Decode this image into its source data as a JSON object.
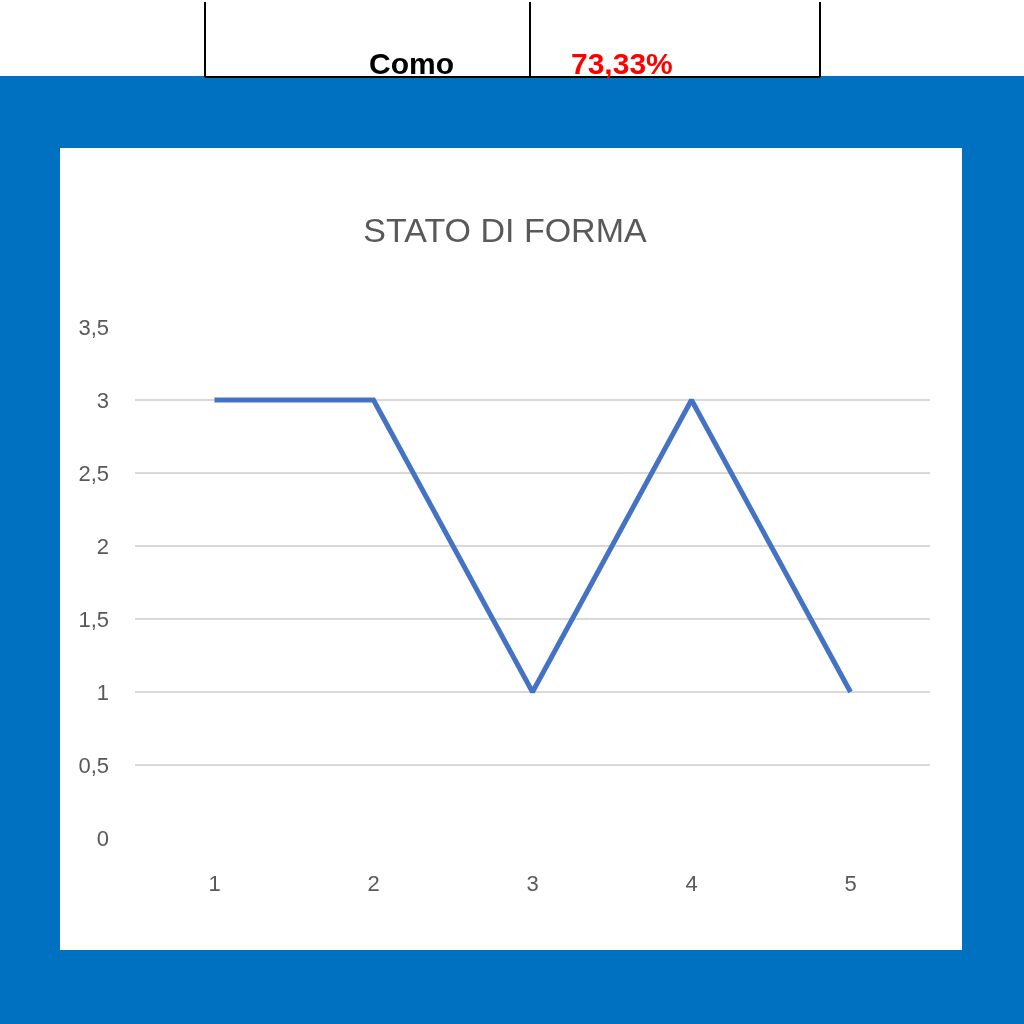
{
  "chart_data": {
    "type": "line",
    "title": "STATO DI FORMA",
    "categories": [
      "1",
      "2",
      "3",
      "4",
      "5"
    ],
    "series": [
      {
        "color": "#4472c4",
        "values": [
          3,
          3,
          1,
          3,
          1
        ]
      }
    ],
    "ylim": [
      0,
      3.5
    ],
    "yticks": [
      0,
      {
        "value": 0.5,
        "label": "0,5"
      },
      1,
      {
        "value": 1.5,
        "label": "1,5"
      },
      2,
      {
        "value": 2.5,
        "label": "2,5"
      },
      3,
      {
        "value": 3.5,
        "label": "3,5"
      }
    ],
    "grid": "y",
    "marker": "none",
    "line_style": "solid",
    "annotations": [
      "Como",
      "73,33%"
    ]
  }
}
